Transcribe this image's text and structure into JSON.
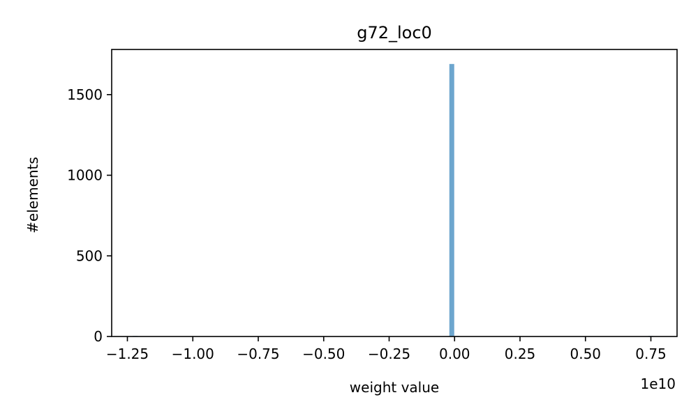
{
  "chart_data": {
    "type": "bar",
    "title": "g72_loc0",
    "xlabel": "weight value",
    "ylabel": "#elements",
    "x_offset_label": "1e10",
    "xlim": [
      -1.31,
      0.85
    ],
    "ylim": [
      0,
      1780
    ],
    "x_ticks": [
      -1.25,
      -1.0,
      -0.75,
      -0.5,
      -0.25,
      0.0,
      0.25,
      0.5,
      0.75
    ],
    "x_tick_labels": [
      "−1.25",
      "−1.00",
      "−0.75",
      "−0.50",
      "−0.25",
      "0.00",
      "0.25",
      "0.50",
      "0.75"
    ],
    "y_ticks": [
      0,
      500,
      1000,
      1500
    ],
    "y_tick_labels": [
      "0",
      "500",
      "1000",
      "1500"
    ],
    "bar_color": "#1f77b4",
    "bins": [
      {
        "x0": -1.23,
        "x1": -1.21,
        "count": 1
      },
      {
        "x0": -0.02,
        "x1": 0.0,
        "count": 1690
      },
      {
        "x0": 0.0,
        "x1": 0.02,
        "count": 3
      },
      {
        "x0": 0.74,
        "x1": 0.76,
        "count": 1
      }
    ],
    "grid": false,
    "legend": "none"
  }
}
